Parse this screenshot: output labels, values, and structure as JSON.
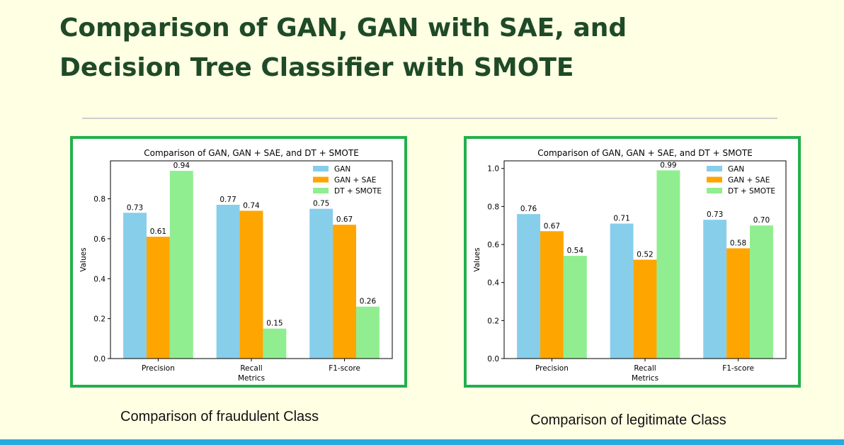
{
  "slide": {
    "title_line1": "Comparison of GAN, GAN with SAE, and",
    "title_line2": "Decision Tree Classifier with SMOTE",
    "caption_left": "Comparison of fraudulent Class",
    "caption_right": "Comparison of legitimate Class",
    "colors": {
      "title": "#1f4a27",
      "panel_border": "#22b04c",
      "bottom_bar": "#27aae1"
    }
  },
  "chart_data": [
    {
      "type": "bar",
      "title": "Comparison of GAN, GAN + SAE, and DT + SMOTE",
      "xlabel": "Metrics",
      "ylabel": "Values",
      "categories": [
        "Precision",
        "Recall",
        "F1-score"
      ],
      "series": [
        {
          "name": "GAN",
          "values": [
            0.73,
            0.77,
            0.75
          ],
          "color": "#87ceeb"
        },
        {
          "name": "GAN + SAE",
          "values": [
            0.61,
            0.74,
            0.67
          ],
          "color": "#ffa500"
        },
        {
          "name": "DT + SMOTE",
          "values": [
            0.94,
            0.15,
            0.26
          ],
          "color": "#90ee90"
        }
      ],
      "ylim": [
        0,
        0.99
      ],
      "yticks": [
        0.0,
        0.2,
        0.4,
        0.6,
        0.8
      ],
      "legend": "top-right",
      "data_labels": true,
      "grid": false
    },
    {
      "type": "bar",
      "title": "Comparison of GAN, GAN + SAE, and DT + SMOTE",
      "xlabel": "Metrics",
      "ylabel": "Values",
      "categories": [
        "Precision",
        "Recall",
        "F1-score"
      ],
      "series": [
        {
          "name": "GAN",
          "values": [
            0.76,
            0.71,
            0.73
          ],
          "color": "#87ceeb"
        },
        {
          "name": "GAN + SAE",
          "values": [
            0.67,
            0.52,
            0.58
          ],
          "color": "#ffa500"
        },
        {
          "name": "DT + SMOTE",
          "values": [
            0.54,
            0.99,
            0.7
          ],
          "color": "#90ee90"
        }
      ],
      "ylim": [
        0,
        1.04
      ],
      "yticks": [
        0.0,
        0.2,
        0.4,
        0.6,
        0.8,
        1.0
      ],
      "legend": "top-right",
      "data_labels": true,
      "grid": false
    }
  ]
}
